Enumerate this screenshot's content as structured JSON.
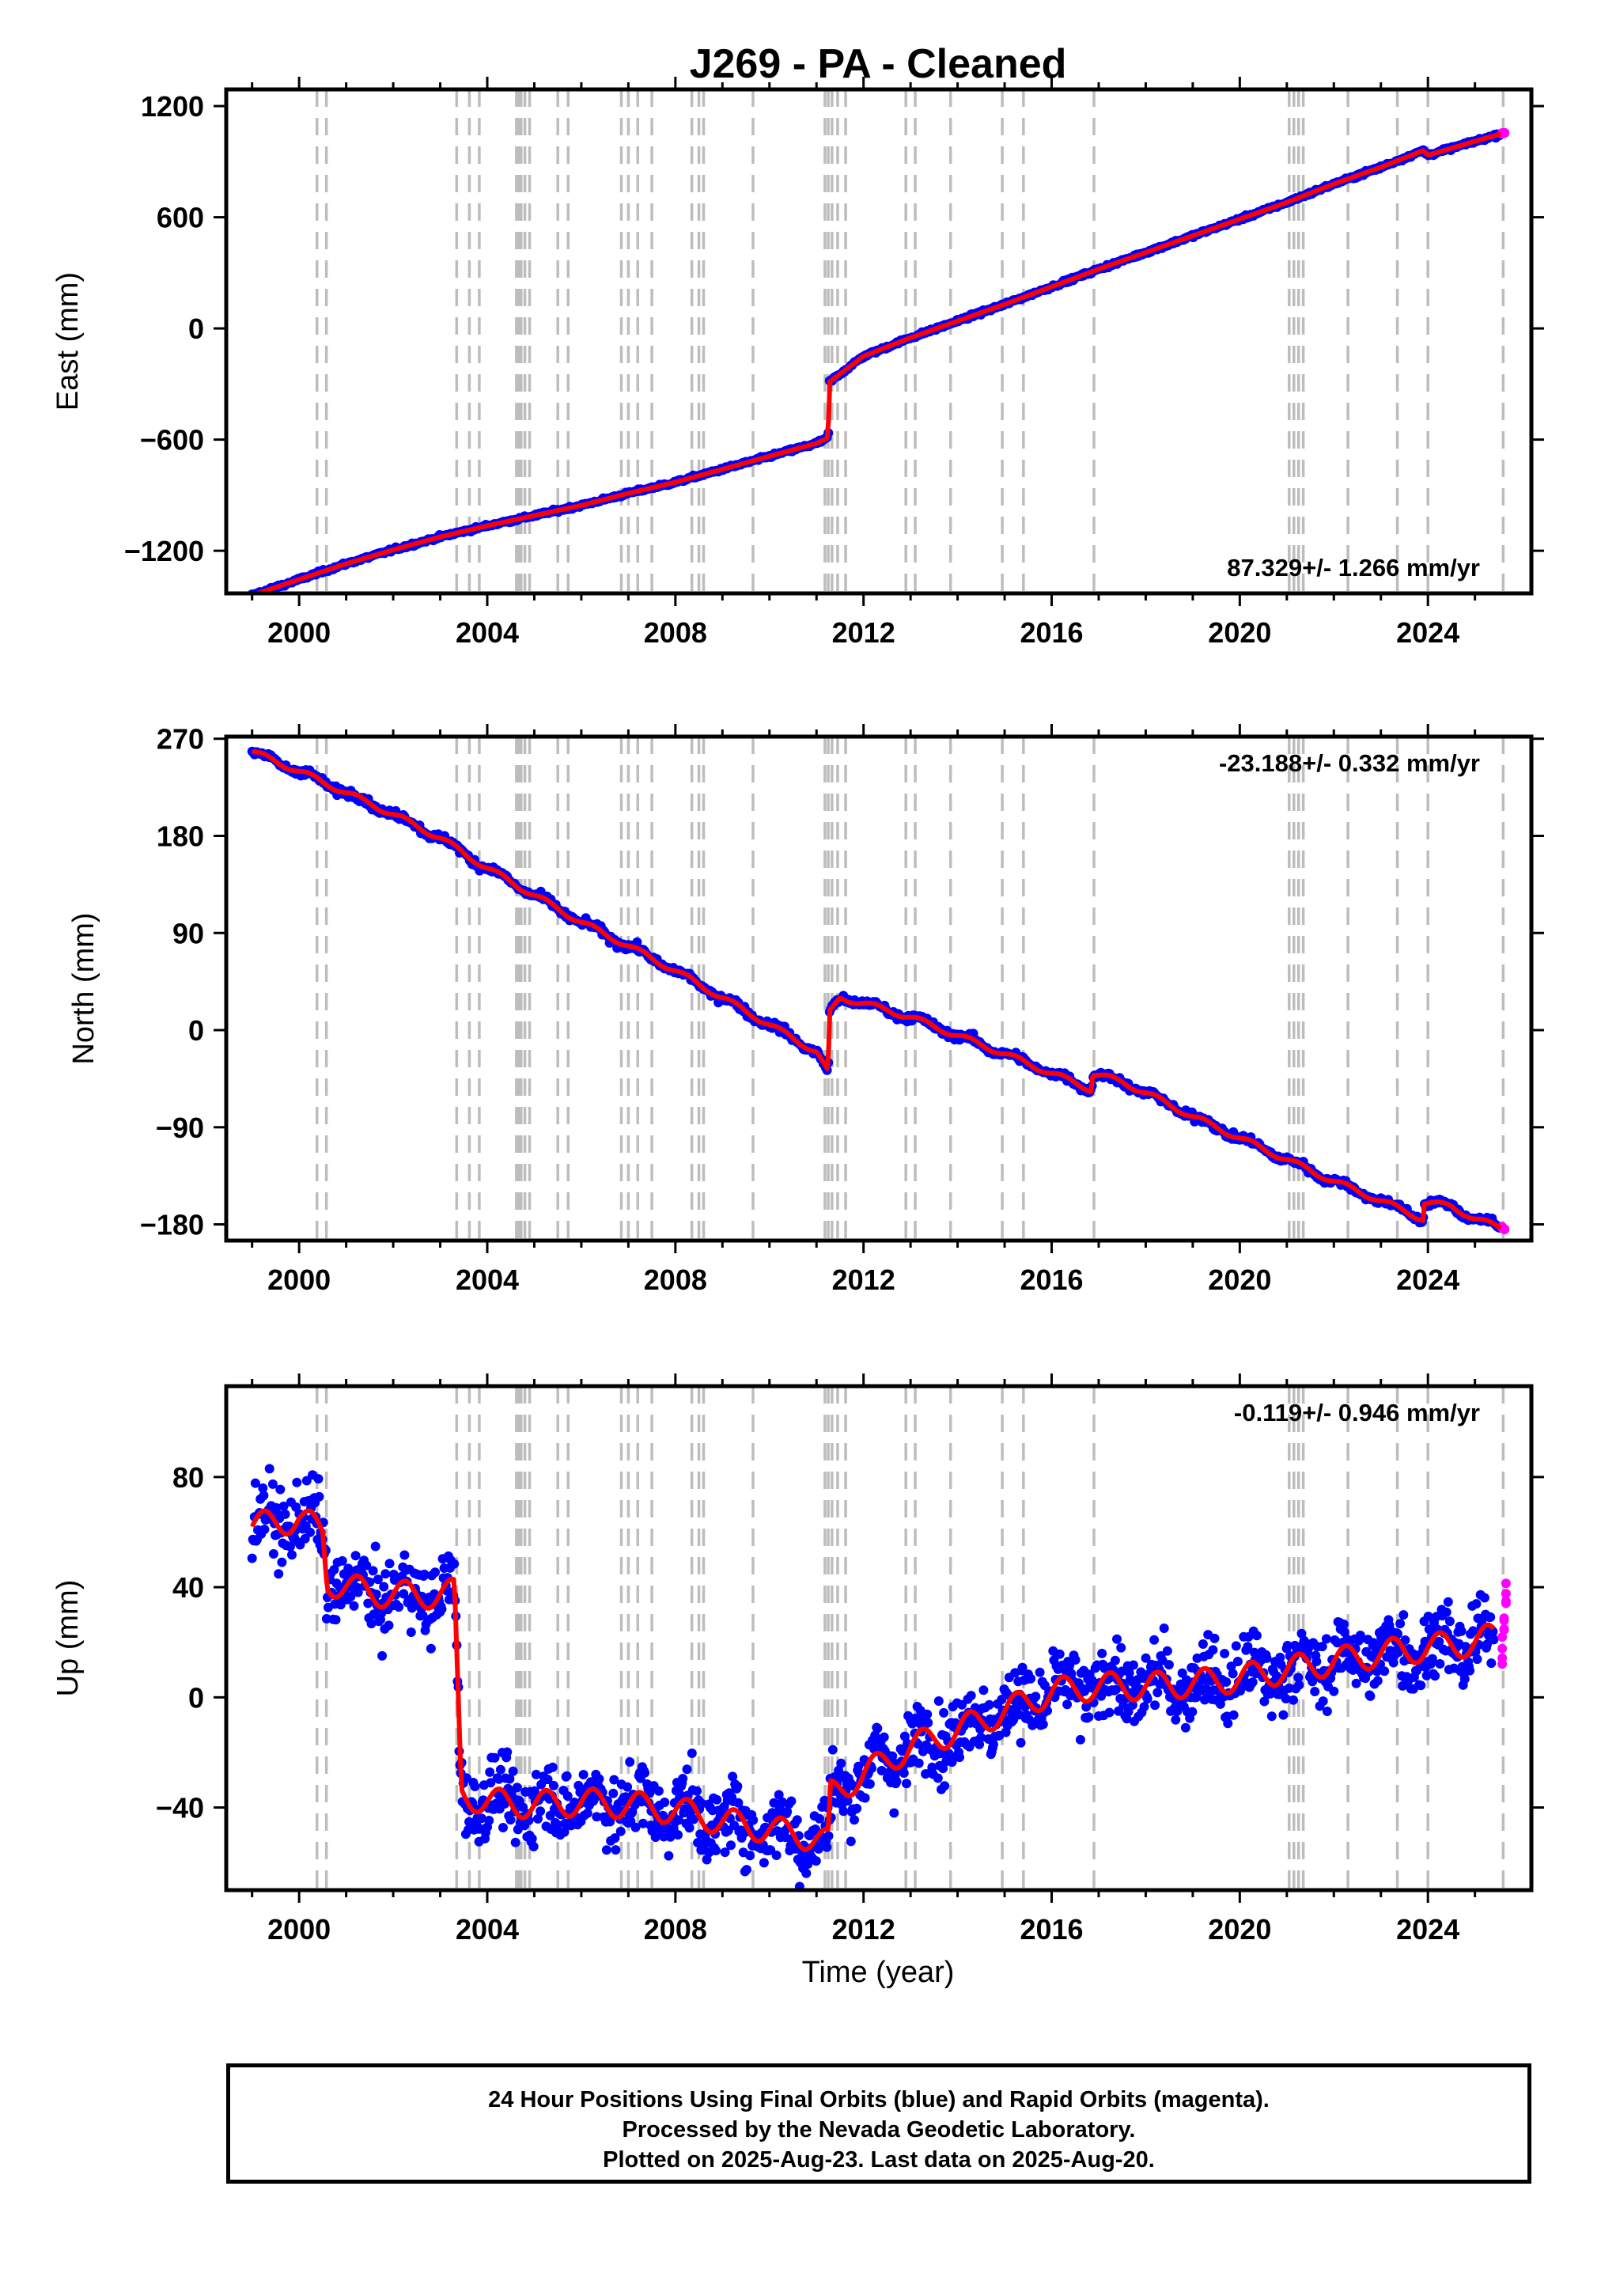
{
  "title": "J269  - PA - Cleaned",
  "x_axis": {
    "label": "Time (year)",
    "ticks": [
      2000,
      2004,
      2008,
      2012,
      2016,
      2020,
      2024
    ],
    "range": [
      1998.45,
      2026.2
    ]
  },
  "colors": {
    "final_orbits": "#0000ff",
    "rapid_orbits": "#ff00ff",
    "model": "#ff0000",
    "event_lines": "#bdbdbd",
    "frame": "#000000"
  },
  "chart_data": [
    {
      "type": "scatter",
      "name": "east",
      "ylabel": "East (mm)",
      "ylim": [
        -1430,
        1290
      ],
      "yticks": [
        1200,
        600,
        0,
        -600,
        -1200
      ],
      "rate_label": "87.329+/- 1.266 mm/yr",
      "rate_position": "bottom-right",
      "series": [
        {
          "name": "Final Orbits",
          "x": [
            1999.0,
            2000.0,
            2001.0,
            2002.0,
            2003.0,
            2004.0,
            2005.0,
            2006.0,
            2007.0,
            2008.0,
            2009.0,
            2010.0,
            2011.0,
            2011.25,
            2011.27,
            2012.0,
            2013.0,
            2014.0,
            2015.0,
            2016.0,
            2017.0,
            2018.0,
            2019.0,
            2020.0,
            2021.0,
            2022.0,
            2023.0,
            2023.9,
            2024.0,
            2025.0,
            2025.55
          ],
          "y": [
            -1440,
            -1355,
            -1270,
            -1195,
            -1125,
            -1065,
            -1010,
            -955,
            -890,
            -830,
            -760,
            -690,
            -620,
            -590,
            -290,
            -150,
            -50,
            40,
            130,
            225,
            320,
            410,
            500,
            590,
            680,
            780,
            870,
            960,
            935,
            1010,
            1050
          ]
        },
        {
          "name": "Rapid Orbits",
          "x": [
            2025.58,
            2025.63
          ],
          "y": [
            1052,
            1055
          ]
        }
      ]
    },
    {
      "type": "scatter",
      "name": "north",
      "ylabel": "North (mm)",
      "ylim": [
        -195,
        272
      ],
      "yticks": [
        270,
        180,
        90,
        0,
        -90,
        -180
      ],
      "rate_label": "-23.188+/- 0.332 mm/yr",
      "rate_position": "top-right",
      "series": [
        {
          "name": "Final Orbits",
          "x": [
            1999.0,
            2000.0,
            2001.0,
            2002.0,
            2003.0,
            2004.0,
            2005.0,
            2006.0,
            2007.0,
            2008.0,
            2009.0,
            2010.0,
            2011.0,
            2011.25,
            2011.27,
            2011.5,
            2012.0,
            2013.0,
            2014.0,
            2015.0,
            2016.0,
            2016.85,
            2016.87,
            2017.5,
            2018.0,
            2019.0,
            2020.0,
            2021.0,
            2022.0,
            2023.0,
            2023.9,
            2023.92,
            2024.5,
            2025.0,
            2025.55
          ],
          "y": [
            258,
            240,
            220,
            200,
            178,
            150,
            125,
            100,
            78,
            55,
            30,
            5,
            -20,
            -40,
            15,
            30,
            25,
            12,
            -5,
            -22,
            -40,
            -55,
            -40,
            -48,
            -58,
            -80,
            -100,
            -120,
            -140,
            -158,
            -175,
            -160,
            -163,
            -175,
            -183
          ]
        },
        {
          "name": "Rapid Orbits",
          "x": [
            2025.58,
            2025.63
          ],
          "y": [
            -183,
            -184
          ]
        }
      ]
    },
    {
      "type": "scatter",
      "name": "up",
      "ylabel": "Up (mm)",
      "ylim": [
        -70,
        113
      ],
      "yticks": [
        80,
        40,
        0,
        -40
      ],
      "rate_label": "-0.119+/- 0.946 mm/yr",
      "rate_position": "top-right",
      "series": [
        {
          "name": "Final Orbits",
          "x": [
            1999.0,
            2000.0,
            2000.5,
            2000.6,
            2001.5,
            2002.5,
            2003.3,
            2003.45,
            2004.0,
            2005.0,
            2006.0,
            2007.0,
            2008.0,
            2009.0,
            2010.0,
            2011.0,
            2011.25,
            2011.3,
            2012.0,
            2013.0,
            2014.0,
            2015.0,
            2016.0,
            2017.0,
            2018.0,
            2019.0,
            2020.0,
            2021.0,
            2022.0,
            2023.0,
            2024.0,
            2025.0,
            2025.4
          ],
          "y": [
            62,
            65,
            60,
            42,
            38,
            37,
            38,
            -35,
            -38,
            -39,
            -38,
            -39,
            -41,
            -45,
            -48,
            -51,
            -53,
            -35,
            -28,
            -18,
            -12,
            -5,
            2,
            4,
            4,
            5,
            7,
            10,
            13,
            16,
            18,
            20,
            22
          ]
        },
        {
          "name": "Rapid Orbits",
          "x": [
            2025.58,
            2025.62,
            2025.66
          ],
          "y": [
            18,
            28,
            38
          ]
        }
      ]
    }
  ],
  "footer": {
    "line1": "24 Hour Positions Using Final Orbits (blue) and Rapid Orbits (magenta).",
    "line2": "Processed by the Nevada Geodetic Laboratory.",
    "line3": "Plotted on 2025-Aug-23. Last data on 2025-Aug-20."
  }
}
